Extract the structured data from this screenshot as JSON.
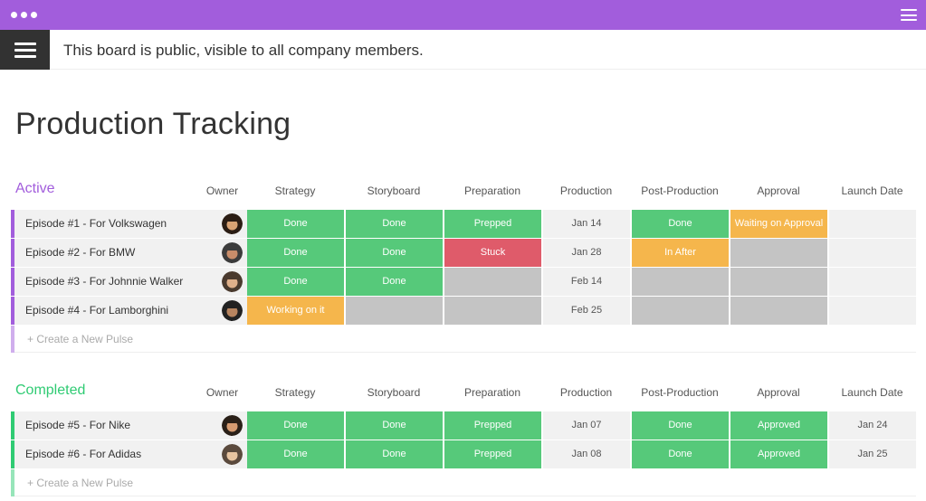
{
  "header": {
    "notice": "This board is public, visible to all company members.",
    "menu_icon": "hamburger-icon",
    "window_icon": "dots-icon"
  },
  "board": {
    "title": "Production Tracking"
  },
  "columns": [
    "Owner",
    "Strategy",
    "Storyboard",
    "Preparation",
    "Production",
    "Post-Production",
    "Approval",
    "Launch Date"
  ],
  "colors": {
    "purple": "#a25ddc",
    "active": "#a25ddc",
    "completed": "#2fcb73",
    "done": "#56c97a",
    "stuck": "#df5b6a",
    "working": "#f5b64c",
    "empty": "#c4c4c4"
  },
  "groups": [
    {
      "name": "Active",
      "create_label": "+ Create a New Pulse",
      "rows": [
        {
          "name": "Episode #1 - For Volkswagen",
          "strategy": "Done",
          "storyboard": "Done",
          "preparation": "Prepped",
          "production": "Jan 14",
          "post": "Done",
          "approval": "Waiting on Approval",
          "launch": ""
        },
        {
          "name": "Episode #2 - For BMW",
          "strategy": "Done",
          "storyboard": "Done",
          "preparation": "Stuck",
          "production": "Jan 28",
          "post": "In After",
          "approval": "",
          "launch": ""
        },
        {
          "name": "Episode #3 - For Johnnie Walker",
          "strategy": "Done",
          "storyboard": "Done",
          "preparation": "",
          "production": "Feb 14",
          "post": "",
          "approval": "",
          "launch": ""
        },
        {
          "name": "Episode #4 - For Lamborghini",
          "strategy": "Working on it",
          "storyboard": "",
          "preparation": "",
          "production": "Feb 25",
          "post": "",
          "approval": "",
          "launch": ""
        }
      ]
    },
    {
      "name": "Completed",
      "create_label": "+ Create a New Pulse",
      "rows": [
        {
          "name": "Episode #5 - For Nike",
          "strategy": "Done",
          "storyboard": "Done",
          "preparation": "Prepped",
          "production": "Jan 07",
          "post": "Done",
          "approval": "Approved",
          "launch": "Jan 24"
        },
        {
          "name": "Episode #6 - For Adidas",
          "strategy": "Done",
          "storyboard": "Done",
          "preparation": "Prepped",
          "production": "Jan 08",
          "post": "Done",
          "approval": "Approved",
          "launch": "Jan 25"
        }
      ]
    }
  ]
}
